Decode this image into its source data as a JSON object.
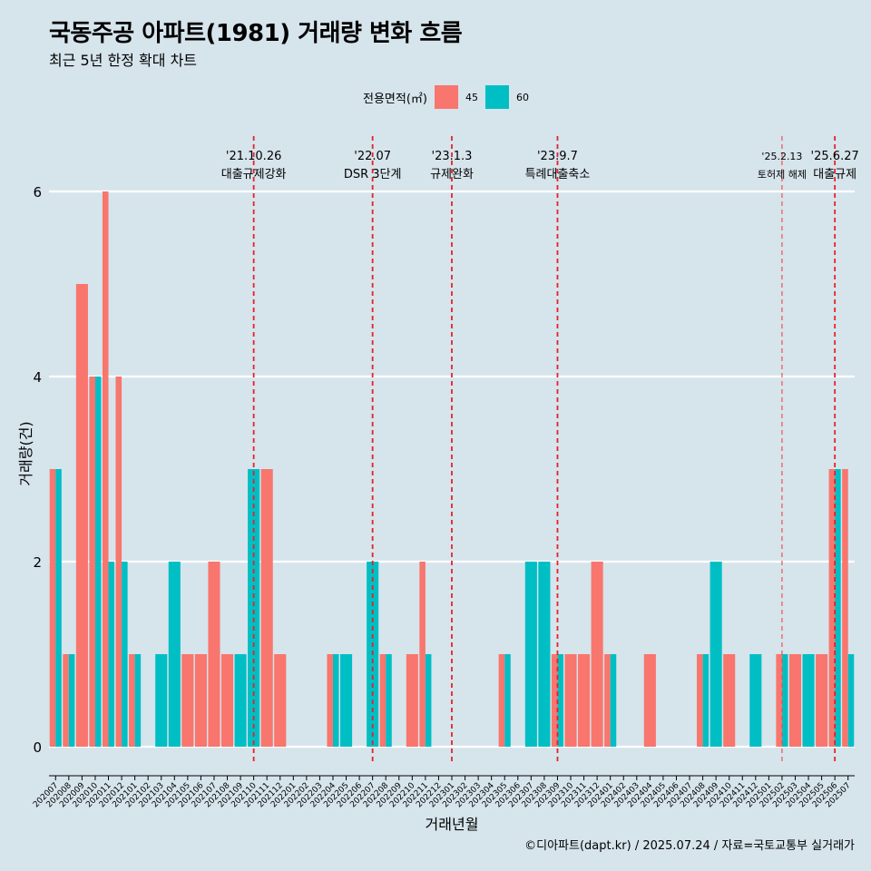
{
  "header": {
    "title": "국동주공 아파트(1981) 거래량 변화 흐름",
    "subtitle": "최근 5년 한정 확대 차트"
  },
  "legend": {
    "title": "전용면적(㎡)",
    "items": [
      {
        "label": "45",
        "color": "#f8766d"
      },
      {
        "label": "60",
        "color": "#00bfc4"
      }
    ]
  },
  "caption": "©디아파트(dapt.kr) / 2025.07.24 / 자료=국토교통부 실거래가",
  "chart_data": {
    "type": "bar",
    "xlabel": "거래년월",
    "ylabel": "거래량(건)",
    "ylim": [
      0,
      6
    ],
    "yticks": [
      0,
      2,
      4,
      6
    ],
    "grid": true,
    "legend_position": "top",
    "categories": [
      "202007",
      "202008",
      "202009",
      "202010",
      "202011",
      "202012",
      "202101",
      "202102",
      "202103",
      "202104",
      "202105",
      "202106",
      "202107",
      "202108",
      "202109",
      "202110",
      "202111",
      "202112",
      "202201",
      "202202",
      "202203",
      "202204",
      "202205",
      "202206",
      "202207",
      "202208",
      "202209",
      "202210",
      "202211",
      "202212",
      "202301",
      "202302",
      "202303",
      "202304",
      "202305",
      "202306",
      "202307",
      "202308",
      "202309",
      "202310",
      "202311",
      "202312",
      "202401",
      "202402",
      "202403",
      "202404",
      "202405",
      "202406",
      "202407",
      "202408",
      "202409",
      "202410",
      "202411",
      "202412",
      "202501",
      "202502",
      "202503",
      "202504",
      "202505",
      "202506",
      "202507"
    ],
    "series": [
      {
        "name": "45",
        "color": "#f8766d",
        "values": [
          3,
          1,
          5,
          4,
          6,
          4,
          1,
          0,
          0,
          0,
          1,
          1,
          2,
          1,
          0,
          0,
          3,
          1,
          0,
          0,
          0,
          1,
          0,
          0,
          0,
          1,
          0,
          1,
          2,
          0,
          0,
          0,
          0,
          0,
          1,
          0,
          0,
          0,
          1,
          1,
          1,
          2,
          1,
          0,
          0,
          1,
          0,
          0,
          0,
          1,
          0,
          1,
          0,
          0,
          0,
          1,
          1,
          0,
          1,
          3,
          3
        ]
      },
      {
        "name": "60",
        "color": "#00bfc4",
        "values": [
          3,
          1,
          0,
          4,
          2,
          2,
          1,
          0,
          1,
          2,
          0,
          0,
          0,
          0,
          1,
          3,
          0,
          0,
          0,
          0,
          0,
          1,
          1,
          0,
          2,
          1,
          0,
          0,
          1,
          0,
          0,
          0,
          0,
          0,
          1,
          0,
          2,
          2,
          1,
          0,
          0,
          0,
          1,
          0,
          0,
          0,
          0,
          0,
          0,
          1,
          2,
          0,
          0,
          1,
          0,
          1,
          0,
          1,
          0,
          3,
          1
        ]
      }
    ],
    "annotations": [
      {
        "category": "202110",
        "date": "'21.10.26",
        "label": "대출규제강화",
        "style": "dashed"
      },
      {
        "category": "202207",
        "date": "'22.07",
        "label": "DSR 3단계",
        "style": "dashed"
      },
      {
        "category": "202301",
        "date": "'23.1.3",
        "label": "규제완화",
        "style": "dashed"
      },
      {
        "category": "202309",
        "date": "'23.9.7",
        "label": "특례대출축소",
        "style": "dashed"
      },
      {
        "category": "202502",
        "date": "'25.2.13",
        "label": "토허제 해제",
        "style": "dashed-thin"
      },
      {
        "category": "202506",
        "date": "'25.6.27",
        "label": "대출규제",
        "style": "dashed"
      }
    ]
  }
}
